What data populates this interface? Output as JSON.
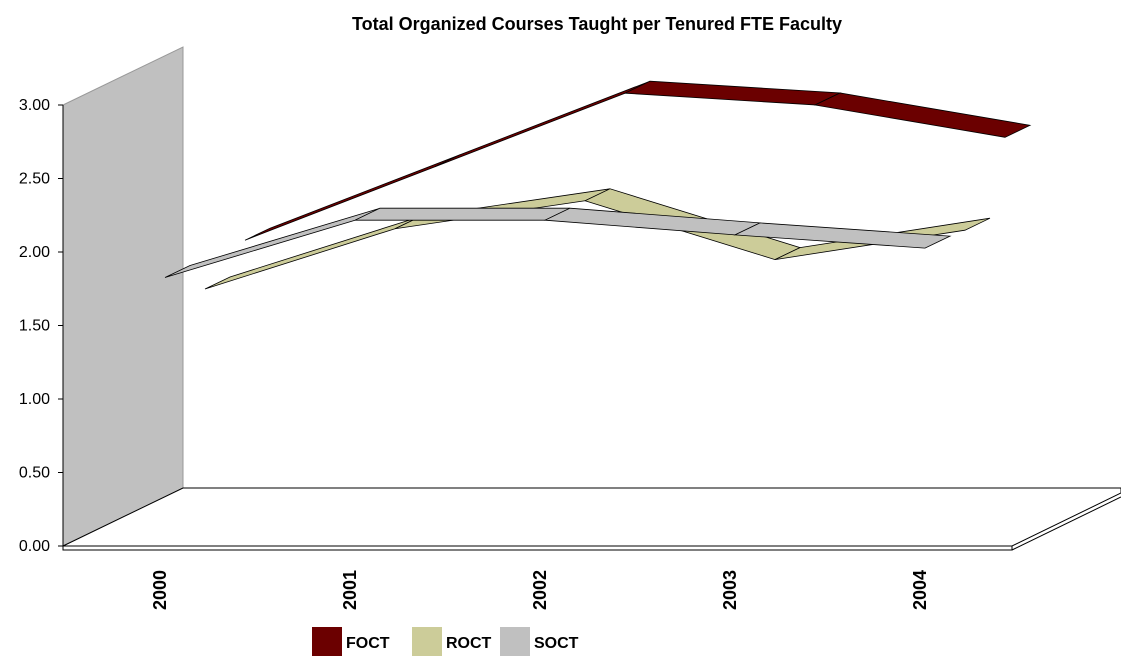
{
  "chart_data": {
    "type": "line3d",
    "title": "Total Organized Courses Taught per Tenured FTE Faculty",
    "categories": [
      "2000",
      "2001",
      "2002",
      "2003",
      "2004"
    ],
    "series": [
      {
        "name": "FOCT",
        "color": "#6b0000",
        "values": [
          1.8,
          2.3,
          2.8,
          2.72,
          2.5
        ]
      },
      {
        "name": "ROCT",
        "color": "#cccc99",
        "values": [
          1.6,
          2.01,
          2.2,
          1.8,
          2.0
        ]
      },
      {
        "name": "SOCT",
        "color": "#c0c0c0",
        "values": [
          1.81,
          2.2,
          2.2,
          2.1,
          2.01
        ]
      }
    ],
    "ylim": [
      0,
      3
    ],
    "yticks": [
      {
        "value": 0,
        "label": "0.00"
      },
      {
        "value": 0.5,
        "label": "0.50"
      },
      {
        "value": 1,
        "label": "1.00"
      },
      {
        "value": 1.5,
        "label": "1.50"
      },
      {
        "value": 2,
        "label": "2.00"
      },
      {
        "value": 2.5,
        "label": "2.50"
      },
      {
        "value": 3,
        "label": "3.00"
      }
    ]
  }
}
